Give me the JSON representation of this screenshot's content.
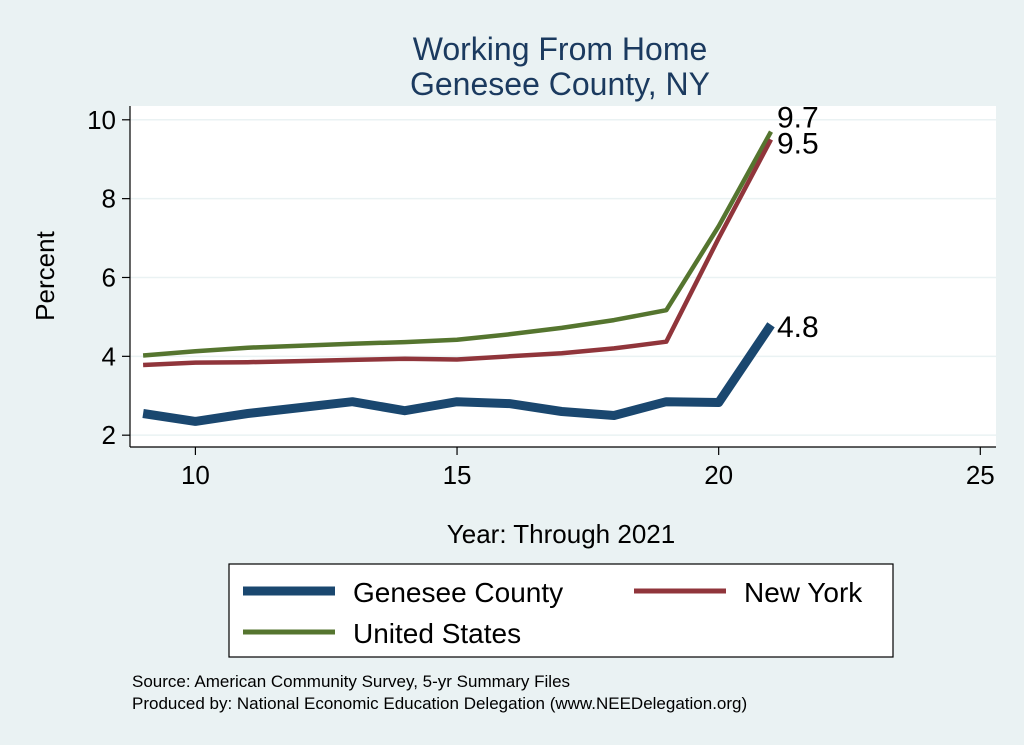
{
  "chart_data": {
    "type": "line",
    "title": "Working From Home",
    "subtitle": "Genesee County, NY",
    "xlabel": "Year: Through 2021",
    "ylabel": "Percent",
    "xlim": [
      8.75,
      25.3
    ],
    "ylim": [
      1.7,
      10.35
    ],
    "xticks": [
      10,
      15,
      20,
      25
    ],
    "yticks": [
      2,
      4,
      6,
      8,
      10
    ],
    "grid": true,
    "legend_position": "bottom",
    "series": [
      {
        "name": "Genesee County",
        "color": "#1a476f",
        "x": [
          9,
          10,
          11,
          12,
          13,
          14,
          15,
          16,
          17,
          18,
          19,
          20,
          21
        ],
        "values": [
          2.55,
          2.35,
          2.55,
          2.7,
          2.85,
          2.62,
          2.85,
          2.8,
          2.6,
          2.5,
          2.85,
          2.83,
          4.8
        ],
        "end_label": "4.8"
      },
      {
        "name": "New York",
        "color": "#90353b",
        "x": [
          9,
          10,
          11,
          12,
          13,
          14,
          15,
          16,
          17,
          18,
          19,
          20,
          21
        ],
        "values": [
          3.78,
          3.84,
          3.85,
          3.88,
          3.91,
          3.94,
          3.92,
          4.0,
          4.08,
          4.2,
          4.37,
          7.0,
          9.5
        ],
        "end_label": "9.5"
      },
      {
        "name": "United States",
        "color": "#55752f",
        "x": [
          9,
          10,
          11,
          12,
          13,
          14,
          15,
          16,
          17,
          18,
          19,
          20,
          21
        ],
        "values": [
          4.02,
          4.13,
          4.22,
          4.27,
          4.32,
          4.36,
          4.42,
          4.56,
          4.72,
          4.92,
          5.17,
          7.3,
          9.7
        ],
        "end_label": "9.7"
      }
    ]
  },
  "notes": {
    "source": "Source: American Community Survey, 5-yr Summary Files",
    "produced": "Produced by: National Economic Education Delegation (www.NEEDelegation.org)"
  }
}
